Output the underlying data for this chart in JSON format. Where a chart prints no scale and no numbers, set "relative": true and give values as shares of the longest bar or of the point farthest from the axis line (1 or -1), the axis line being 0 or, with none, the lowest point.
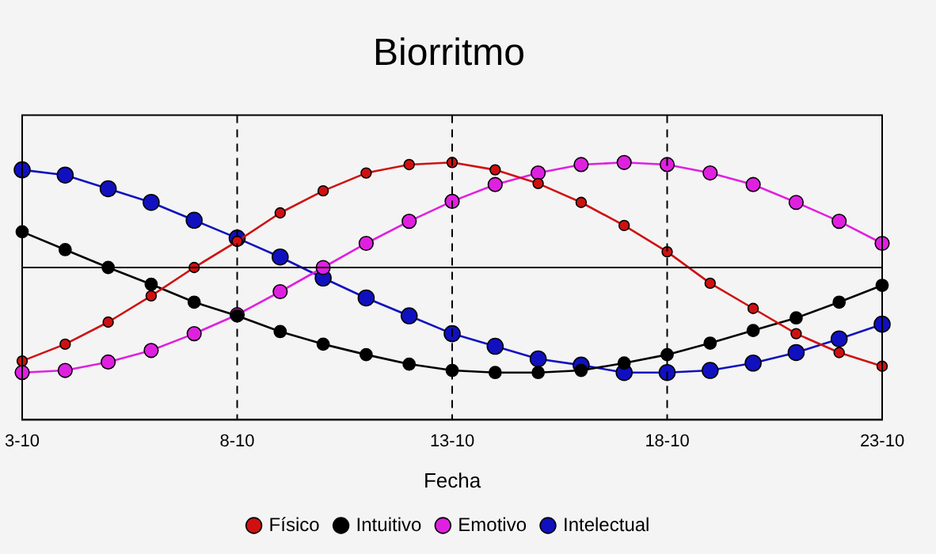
{
  "chart_data": {
    "type": "line",
    "title": "Biorritmo",
    "xlabel": "Fecha",
    "relative": true,
    "grid": false,
    "legend": "bottom",
    "marker": "circle",
    "line_style": "solid",
    "tick_labels": "x",
    "categories": [
      "3-10",
      null,
      null,
      null,
      null,
      "8-10",
      null,
      null,
      null,
      null,
      "13-10",
      null,
      null,
      null,
      null,
      "18-10",
      null,
      null,
      null,
      null,
      "23-10"
    ],
    "series": [
      {
        "name": "Físico",
        "color": "#d01010",
        "values": [
          -0.89,
          -0.73,
          -0.52,
          -0.27,
          0,
          0.25,
          0.52,
          0.73,
          0.9,
          0.98,
          1,
          0.93,
          0.8,
          0.62,
          0.4,
          0.15,
          -0.15,
          -0.39,
          -0.63,
          -0.81,
          -0.94
        ]
      },
      {
        "name": "Intuitivo",
        "color": "#000000",
        "values": [
          0.34,
          0.17,
          0,
          -0.16,
          -0.33,
          -0.46,
          -0.61,
          -0.73,
          -0.83,
          -0.92,
          -0.98,
          -1,
          -1,
          -0.98,
          -0.91,
          -0.83,
          -0.72,
          -0.6,
          -0.48,
          -0.33,
          -0.17
        ]
      },
      {
        "name": "Emotivo",
        "color": "#e020e0",
        "values": [
          -1,
          -0.98,
          -0.9,
          -0.79,
          -0.63,
          -0.45,
          -0.23,
          0,
          0.23,
          0.44,
          0.63,
          0.79,
          0.9,
          0.98,
          1,
          0.98,
          0.9,
          0.79,
          0.62,
          0.44,
          0.23
        ]
      },
      {
        "name": "Intelectual",
        "color": "#1010c0",
        "values": [
          0.93,
          0.88,
          0.75,
          0.62,
          0.45,
          0.28,
          0.1,
          -0.1,
          -0.29,
          -0.46,
          -0.63,
          -0.75,
          -0.87,
          -0.93,
          -1,
          -1,
          -0.98,
          -0.91,
          -0.81,
          -0.68,
          -0.54
        ]
      }
    ],
    "ref_lines": [
      {
        "axis": "x",
        "value": "8-10",
        "line_style": "dashed",
        "color": "#000000"
      },
      {
        "axis": "x",
        "value": "13-10",
        "line_style": "dashed",
        "color": "#000000"
      },
      {
        "axis": "x",
        "value": "18-10",
        "line_style": "dashed",
        "color": "#000000"
      }
    ]
  }
}
